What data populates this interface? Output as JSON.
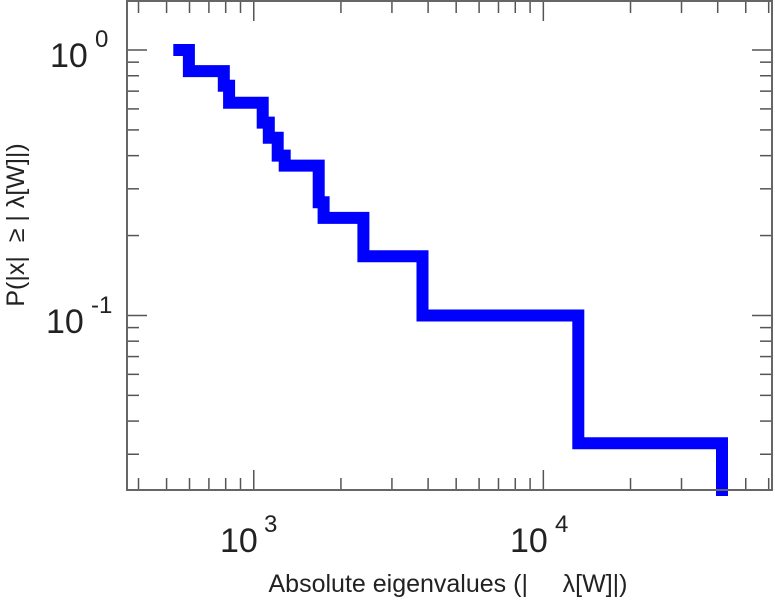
{
  "chart_data": {
    "type": "line",
    "style": "step",
    "title": "",
    "xlabel": "Absolute eigenvalues (|     λ[W]|)",
    "ylabel": "P(|x|  ≥ | λ[W]|)",
    "xscale": "log",
    "yscale": "log",
    "xlim": [
      365,
      61600
    ],
    "ylim": [
      0.022,
      1.53
    ],
    "x_ticks": [
      {
        "value": 1000,
        "base": "10",
        "exp": "3"
      },
      {
        "value": 10000,
        "base": "10",
        "exp": "4"
      }
    ],
    "y_ticks": [
      {
        "value": 1,
        "base": "10",
        "exp": "0"
      },
      {
        "value": 0.1,
        "base": "10",
        "exp": "-1"
      }
    ],
    "grid": false,
    "series": [
      {
        "name": "ccdf",
        "color": "#0000ff",
        "points": [
          [
            553,
            1.0
          ],
          [
            597,
            1.0
          ],
          [
            597,
            0.833
          ],
          [
            788,
            0.833
          ],
          [
            788,
            0.733
          ],
          [
            822,
            0.733
          ],
          [
            822,
            0.633
          ],
          [
            1074,
            0.633
          ],
          [
            1074,
            0.533
          ],
          [
            1127,
            0.533
          ],
          [
            1127,
            0.467
          ],
          [
            1210,
            0.467
          ],
          [
            1210,
            0.4
          ],
          [
            1279,
            0.4
          ],
          [
            1279,
            0.367
          ],
          [
            1676,
            0.367
          ],
          [
            1676,
            0.267
          ],
          [
            1743,
            0.267
          ],
          [
            1743,
            0.233
          ],
          [
            2392,
            0.233
          ],
          [
            2392,
            0.167
          ],
          [
            3825,
            0.167
          ],
          [
            3825,
            0.1
          ],
          [
            13200,
            0.1
          ],
          [
            13200,
            0.033
          ],
          [
            41400,
            0.033
          ],
          [
            41400,
            0.022
          ]
        ]
      }
    ]
  }
}
